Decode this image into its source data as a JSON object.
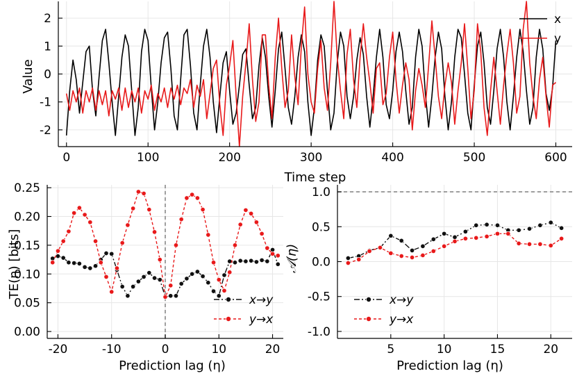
{
  "chart_data": [
    {
      "type": "line",
      "title": "",
      "xlabel": "Time step",
      "ylabel": "Value",
      "xlim": [
        -10,
        620
      ],
      "ylim": [
        -2.6,
        2.6
      ],
      "xticks": [
        0,
        100,
        200,
        300,
        400,
        500,
        600
      ],
      "xtick_labels": [
        "0",
        "100",
        "200",
        "300",
        "400",
        "500",
        "600"
      ],
      "yticks": [
        2,
        1,
        0,
        -1,
        -2
      ],
      "ytick_labels": [
        "2",
        "1",
        "0",
        "-1",
        "-2"
      ],
      "legend": {
        "position": "top-right"
      },
      "series": [
        {
          "name": "x",
          "color": "#000000",
          "x": [
            0,
            4,
            8,
            12,
            16,
            20,
            24,
            28,
            32,
            36,
            40,
            44,
            48,
            52,
            56,
            60,
            64,
            68,
            72,
            76,
            80,
            84,
            88,
            92,
            96,
            100,
            104,
            108,
            112,
            116,
            120,
            124,
            128,
            132,
            136,
            140,
            144,
            148,
            152,
            156,
            160,
            164,
            168,
            172,
            176,
            180,
            184,
            188,
            192,
            196,
            200,
            204,
            208,
            212,
            216,
            220,
            224,
            228,
            232,
            236,
            240,
            244,
            248,
            252,
            256,
            260,
            264,
            268,
            272,
            276,
            280,
            284,
            288,
            292,
            296,
            300,
            304,
            308,
            312,
            316,
            320,
            324,
            328,
            332,
            336,
            340,
            344,
            348,
            352,
            356,
            360,
            364,
            368,
            372,
            376,
            380,
            384,
            388,
            392,
            396,
            400,
            404,
            408,
            412,
            416,
            420,
            424,
            428,
            432,
            436,
            440,
            444,
            448,
            452,
            456,
            460,
            464,
            468,
            472,
            476,
            480,
            484,
            488,
            492,
            496,
            500,
            504,
            508,
            512,
            516,
            520,
            524,
            528,
            532,
            536,
            540,
            544,
            548,
            552,
            556,
            560,
            564,
            568,
            572,
            576,
            580,
            584,
            588,
            592,
            596,
            600
          ],
          "y": [
            -2.2,
            -0.6,
            0.5,
            -0.2,
            -1.4,
            -0.3,
            0.8,
            1.0,
            -0.6,
            -1.5,
            -0.1,
            1.2,
            1.6,
            0.4,
            -1.0,
            -2.2,
            -0.8,
            0.6,
            1.4,
            1.0,
            -0.6,
            -2.2,
            -1.2,
            0.8,
            1.6,
            1.2,
            -0.5,
            -2.0,
            -1.0,
            0.4,
            1.3,
            1.5,
            0.2,
            -1.5,
            -2.0,
            -0.2,
            1.4,
            1.6,
            0.3,
            -1.4,
            -2.0,
            -0.4,
            1.0,
            1.6,
            0.6,
            -1.0,
            -2.1,
            -0.8,
            0.4,
            0.8,
            -0.6,
            -1.8,
            -1.4,
            -0.4,
            0.7,
            0.9,
            -0.4,
            -1.6,
            -1.2,
            0.3,
            1.3,
            0.6,
            -0.8,
            -1.9,
            -0.6,
            0.9,
            1.5,
            0.2,
            -1.2,
            -1.8,
            -0.8,
            0.6,
            1.4,
            0.8,
            -1.0,
            -2.2,
            -1.2,
            0.5,
            1.4,
            1.0,
            -0.6,
            -2.0,
            -1.4,
            0.4,
            1.5,
            1.0,
            -0.8,
            -1.6,
            -0.8,
            0.5,
            1.3,
            0.7,
            -0.8,
            -1.9,
            -0.8,
            0.6,
            1.6,
            0.6,
            -1.1,
            -1.6,
            -0.6,
            0.8,
            1.5,
            0.8,
            -0.6,
            -1.8,
            -1.2,
            0.6,
            1.6,
            1.0,
            -0.7,
            -1.9,
            -0.8,
            0.6,
            1.5,
            0.9,
            -0.8,
            -2.0,
            -1.0,
            0.6,
            1.6,
            1.3,
            0.0,
            -1.4,
            -2.0,
            -0.4,
            1.0,
            1.5,
            0.4,
            -1.2,
            -1.8,
            -0.6,
            0.9,
            1.6,
            0.6,
            -1.0,
            -2.0,
            -0.8,
            0.6,
            1.6,
            0.8,
            -0.6,
            -1.8,
            -1.2,
            0.6,
            1.6,
            0.9,
            -0.7,
            -1.3,
            -0.5,
            1.2
          ]
        },
        {
          "name": "y",
          "color": "#e8191a",
          "x": [
            0,
            4,
            8,
            12,
            16,
            20,
            24,
            28,
            32,
            36,
            40,
            44,
            48,
            52,
            56,
            60,
            64,
            68,
            72,
            76,
            80,
            84,
            88,
            92,
            96,
            100,
            104,
            108,
            112,
            116,
            120,
            124,
            128,
            132,
            136,
            140,
            144,
            148,
            152,
            156,
            160,
            164,
            168,
            172,
            176,
            180,
            184,
            188,
            192,
            196,
            200,
            204,
            208,
            212,
            216,
            220,
            224,
            228,
            232,
            236,
            240,
            244,
            248,
            252,
            256,
            260,
            264,
            268,
            272,
            276,
            280,
            284,
            288,
            292,
            296,
            300,
            304,
            308,
            312,
            316,
            320,
            324,
            328,
            332,
            336,
            340,
            344,
            348,
            352,
            356,
            360,
            364,
            368,
            372,
            376,
            380,
            384,
            388,
            392,
            396,
            400,
            404,
            408,
            412,
            416,
            420,
            424,
            428,
            432,
            436,
            440,
            444,
            448,
            452,
            456,
            460,
            464,
            468,
            472,
            476,
            480,
            484,
            488,
            492,
            496,
            500,
            504,
            508,
            512,
            516,
            520,
            524,
            528,
            532,
            536,
            540,
            544,
            548,
            552,
            556,
            560,
            564,
            568,
            572,
            576,
            580,
            584,
            588,
            592,
            596,
            600
          ],
          "y": [
            -0.7,
            -1.3,
            -0.6,
            -1.0,
            -0.5,
            -1.4,
            -0.6,
            -1.0,
            -0.5,
            -1.3,
            -0.6,
            -1.1,
            -0.6,
            -1.5,
            -0.6,
            -0.9,
            -0.5,
            -1.3,
            -0.5,
            -1.2,
            -0.6,
            -1.0,
            -0.5,
            -1.4,
            -0.6,
            -0.9,
            -0.4,
            -1.3,
            -0.7,
            -1.0,
            -0.5,
            -1.2,
            -0.5,
            -0.9,
            -0.4,
            -1.1,
            -0.5,
            -0.7,
            -0.2,
            -1.2,
            -0.4,
            -0.8,
            -0.2,
            -1.6,
            -0.7,
            0.2,
            0.5,
            -1.1,
            -2.2,
            -0.4,
            0.3,
            1.2,
            -0.8,
            -2.6,
            -0.8,
            0.4,
            1.8,
            -0.2,
            -1.7,
            -1.0,
            1.4,
            1.4,
            -0.4,
            -1.6,
            0.6,
            2.0,
            0.2,
            -1.2,
            -0.6,
            1.4,
            -0.1,
            -1.1,
            1.0,
            2.4,
            0.0,
            -1.0,
            -1.4,
            0.2,
            1.2,
            -0.5,
            -1.3,
            0.4,
            2.6,
            0.6,
            -0.6,
            -1.6,
            0.7,
            1.6,
            -0.2,
            -1.2,
            0.6,
            1.8,
            0.6,
            -0.3,
            -1.4,
            0.2,
            0.4,
            -1.1,
            -0.7,
            0.6,
            1.5,
            -0.2,
            -1.4,
            -0.4,
            0.4,
            -0.2,
            -2.0,
            -0.6,
            0.2,
            -0.4,
            -1.2,
            0.3,
            1.9,
            0.6,
            -0.8,
            -1.6,
            -0.4,
            0.4,
            -0.3,
            -1.8,
            -0.6,
            0.4,
            1.8,
            0.2,
            -1.6,
            -0.6,
            1.8,
            0.8,
            -1.2,
            -2.2,
            -0.6,
            0.6,
            -0.6,
            -1.8,
            -0.4,
            0.7,
            1.6,
            0.4,
            -1.4,
            -0.8,
            1.6,
            2.6,
            0.4,
            -0.8,
            -1.6,
            -0.2,
            0.6,
            -0.8,
            -1.9,
            -0.4,
            -0.3
          ]
        }
      ]
    },
    {
      "type": "line",
      "title": "",
      "xlabel": "Prediction lag (η)",
      "ylabel": "TE(η) [bits]",
      "xlim": [
        -22,
        22
      ],
      "ylim": [
        -0.012,
        0.255
      ],
      "xticks": [
        -20,
        -10,
        0,
        10,
        20
      ],
      "xtick_labels": [
        "-20",
        "-10",
        "0",
        "10",
        "20"
      ],
      "yticks": [
        0.25,
        0.2,
        0.15,
        0.1,
        0.05,
        0.0
      ],
      "ytick_labels": [
        "0.25",
        "0.20",
        "0.15",
        "0.10",
        "0.05",
        "0.00"
      ],
      "vline": 0,
      "legend": {
        "position": "lower-right"
      },
      "series": [
        {
          "name": "x→y",
          "color": "#111111",
          "style": "dash-dot",
          "x": [
            -21,
            -20,
            -19,
            -18,
            -17,
            -16,
            -15,
            -14,
            -13,
            -12,
            -11,
            -10,
            -9,
            -8,
            -7,
            -6,
            -5,
            -4,
            -3,
            -2,
            -1,
            0,
            1,
            2,
            3,
            4,
            5,
            6,
            7,
            8,
            9,
            10,
            11,
            12,
            13,
            14,
            15,
            16,
            17,
            18,
            19,
            20,
            21
          ],
          "y": [
            0.127,
            0.131,
            0.128,
            0.12,
            0.119,
            0.118,
            0.112,
            0.11,
            0.114,
            0.125,
            0.136,
            0.135,
            0.107,
            0.078,
            0.062,
            0.078,
            0.087,
            0.095,
            0.102,
            0.093,
            0.09,
            0.06,
            0.062,
            0.062,
            0.083,
            0.092,
            0.1,
            0.104,
            0.096,
            0.085,
            0.07,
            0.062,
            0.098,
            0.122,
            0.12,
            0.123,
            0.122,
            0.123,
            0.121,
            0.124,
            0.122,
            0.142,
            0.117
          ]
        },
        {
          "name": "y→x",
          "color": "#e8191a",
          "style": "dashed",
          "x": [
            -21,
            -20,
            -19,
            -18,
            -17,
            -16,
            -15,
            -14,
            -13,
            -12,
            -11,
            -10,
            -9,
            -8,
            -7,
            -6,
            -5,
            -4,
            -3,
            -2,
            -1,
            0,
            1,
            2,
            3,
            4,
            5,
            6,
            7,
            8,
            9,
            10,
            11,
            12,
            13,
            14,
            15,
            16,
            17,
            18,
            19,
            20,
            21
          ],
          "y": [
            0.12,
            0.14,
            0.157,
            0.174,
            0.206,
            0.215,
            0.203,
            0.19,
            0.157,
            0.12,
            0.095,
            0.069,
            0.11,
            0.154,
            0.185,
            0.214,
            0.243,
            0.24,
            0.212,
            0.173,
            0.125,
            0.06,
            0.08,
            0.15,
            0.195,
            0.232,
            0.238,
            0.232,
            0.212,
            0.168,
            0.12,
            0.09,
            0.071,
            0.103,
            0.15,
            0.186,
            0.211,
            0.205,
            0.19,
            0.17,
            0.145,
            0.135,
            0.132
          ]
        }
      ]
    },
    {
      "type": "line",
      "title": "",
      "xlabel": "Prediction lag (η)",
      "ylabel": "𝒜(η)",
      "xlim": [
        0,
        22
      ],
      "ylim": [
        -1.1,
        1.1
      ],
      "xticks": [
        5,
        10,
        15,
        20
      ],
      "xtick_labels": [
        "5",
        "10",
        "15",
        "20"
      ],
      "yticks": [
        1.0,
        0.5,
        0.0,
        -0.5,
        -1.0
      ],
      "ytick_labels": [
        "1.0",
        "0.5",
        "0.0",
        "-0.5",
        "-1.0"
      ],
      "hline": 1.0,
      "legend": {
        "position": "lower-left"
      },
      "series": [
        {
          "name": "x→y",
          "color": "#111111",
          "style": "dash-dot",
          "x": [
            1,
            2,
            3,
            4,
            5,
            6,
            7,
            8,
            9,
            10,
            11,
            12,
            13,
            14,
            15,
            16,
            17,
            18,
            19,
            20,
            21
          ],
          "y": [
            0.05,
            0.08,
            0.16,
            0.2,
            0.37,
            0.3,
            0.16,
            0.22,
            0.32,
            0.4,
            0.35,
            0.43,
            0.52,
            0.53,
            0.52,
            0.45,
            0.45,
            0.47,
            0.52,
            0.56,
            0.48
          ]
        },
        {
          "name": "y→x",
          "color": "#e8191a",
          "style": "dashed",
          "x": [
            1,
            2,
            3,
            4,
            5,
            6,
            7,
            8,
            9,
            10,
            11,
            12,
            13,
            14,
            15,
            16,
            17,
            18,
            19,
            20,
            21
          ],
          "y": [
            -0.02,
            0.03,
            0.15,
            0.2,
            0.12,
            0.08,
            0.06,
            0.09,
            0.15,
            0.22,
            0.29,
            0.33,
            0.34,
            0.36,
            0.4,
            0.4,
            0.26,
            0.25,
            0.25,
            0.23,
            0.33
          ]
        }
      ]
    }
  ]
}
